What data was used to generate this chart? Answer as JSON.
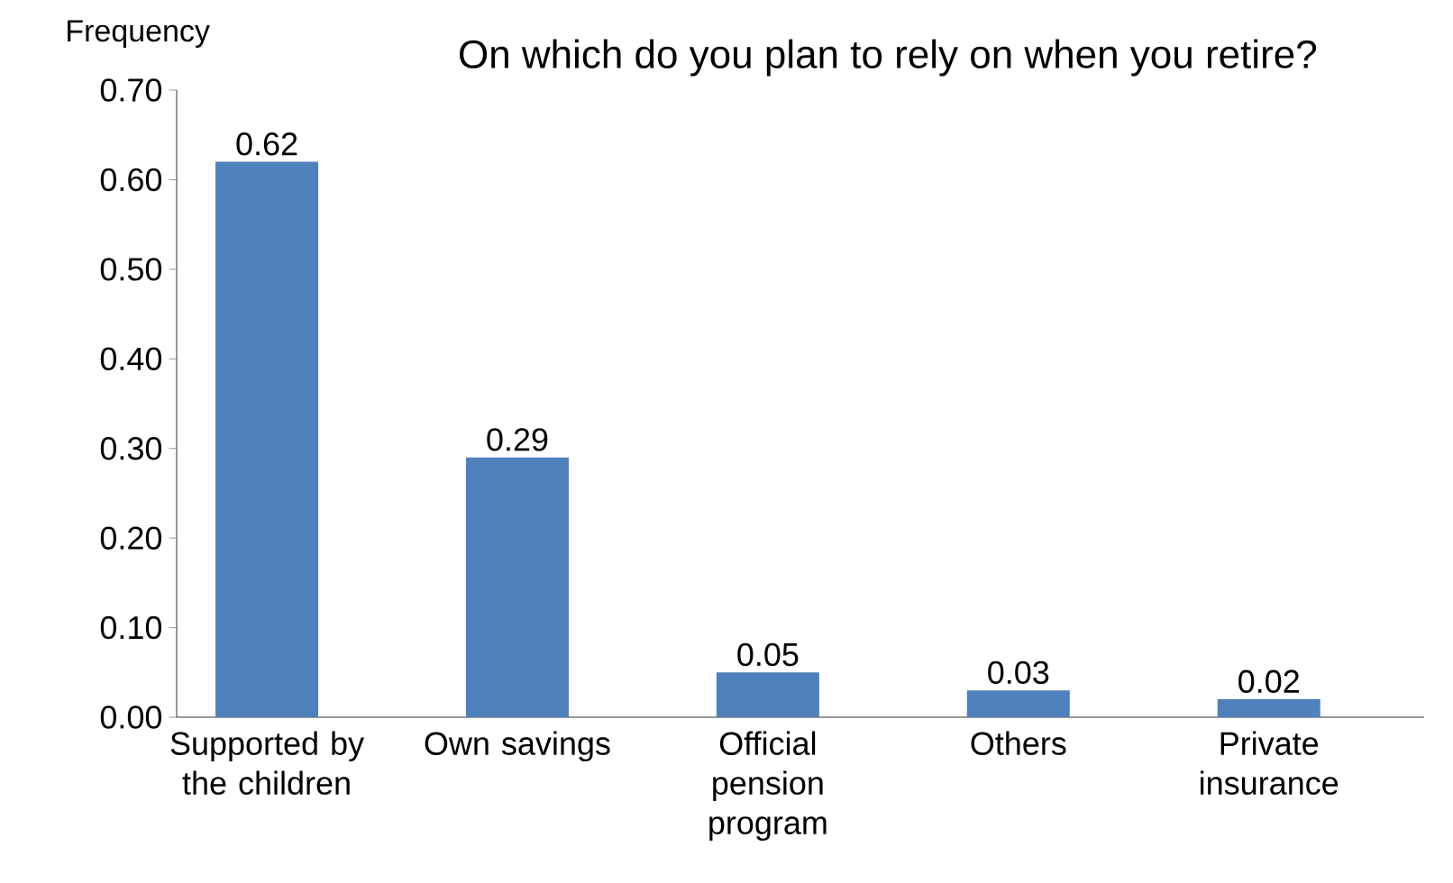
{
  "chart_data": {
    "type": "bar",
    "title": "On which do you plan to rely on when you retire?",
    "ylabel": "Frequency",
    "categories": [
      "Supported by the children",
      "Own savings",
      "Official pension program",
      "Others",
      "Private insurance"
    ],
    "values": [
      0.62,
      0.29,
      0.05,
      0.03,
      0.02
    ],
    "color": "#4f81bd",
    "ylim": [
      0,
      0.7
    ],
    "yticks": [
      {
        "value": 0,
        "label": "0.00"
      },
      {
        "value": 0.1,
        "label": "0.10"
      },
      {
        "value": 0.2,
        "label": "0.20"
      },
      {
        "value": 0.3,
        "label": "0.30"
      },
      {
        "value": 0.4,
        "label": "0.40"
      },
      {
        "value": 0.5,
        "label": "0.50"
      },
      {
        "value": 0.6,
        "label": "0.60"
      },
      {
        "value": 0.7,
        "label": "0.70"
      }
    ],
    "data_labels": true,
    "grid": false
  }
}
